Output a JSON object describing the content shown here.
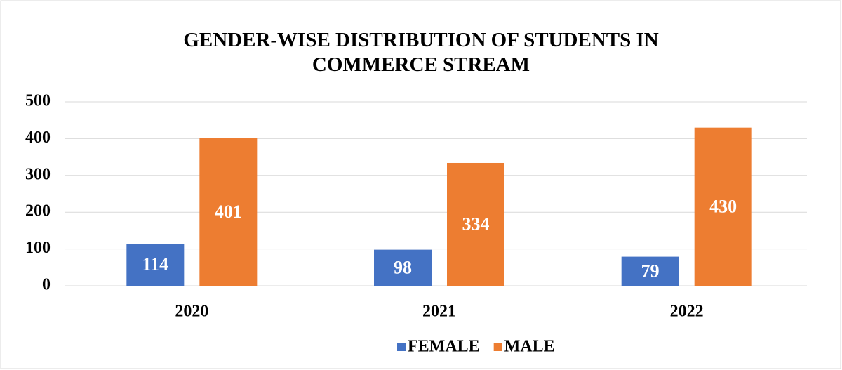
{
  "chart_data": {
    "type": "bar",
    "title": "GENDER-WISE DISTRIBUTION OF STUDENTS IN COMMERCE STREAM",
    "categories": [
      "2020",
      "2021",
      "2022"
    ],
    "series": [
      {
        "name": "FEMALE",
        "color": "#4472c4",
        "values": [
          114,
          98,
          79
        ]
      },
      {
        "name": "MALE",
        "color": "#ed7d31",
        "values": [
          401,
          334,
          430
        ]
      }
    ],
    "ylim": [
      0,
      500
    ],
    "yticks": [
      0,
      100,
      200,
      300,
      400,
      500
    ],
    "grid": true,
    "legend": "bottom"
  }
}
